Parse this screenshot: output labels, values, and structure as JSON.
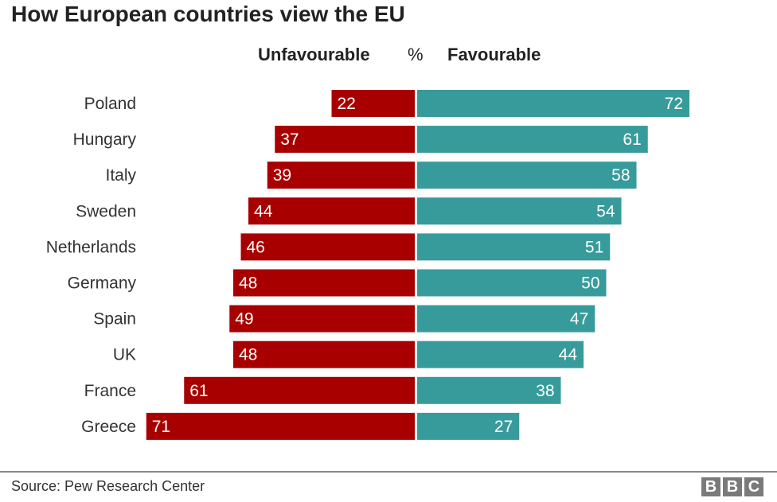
{
  "chart_data": {
    "type": "bar",
    "orientation": "horizontal-diverging",
    "title": "How European countries view the EU",
    "unit_label": "%",
    "categories": [
      "Poland",
      "Hungary",
      "Italy",
      "Sweden",
      "Netherlands",
      "Germany",
      "Spain",
      "UK",
      "France",
      "Greece"
    ],
    "series": [
      {
        "name": "Unfavourable",
        "color": "#a80000",
        "values": [
          22,
          37,
          39,
          44,
          46,
          48,
          49,
          48,
          61,
          71
        ]
      },
      {
        "name": "Favourable",
        "color": "#389b9b",
        "values": [
          72,
          61,
          58,
          54,
          51,
          50,
          47,
          44,
          38,
          27
        ]
      }
    ],
    "grid": false
  },
  "footer": {
    "source": "Source: Pew Research Center",
    "logo": [
      "B",
      "B",
      "C"
    ]
  }
}
